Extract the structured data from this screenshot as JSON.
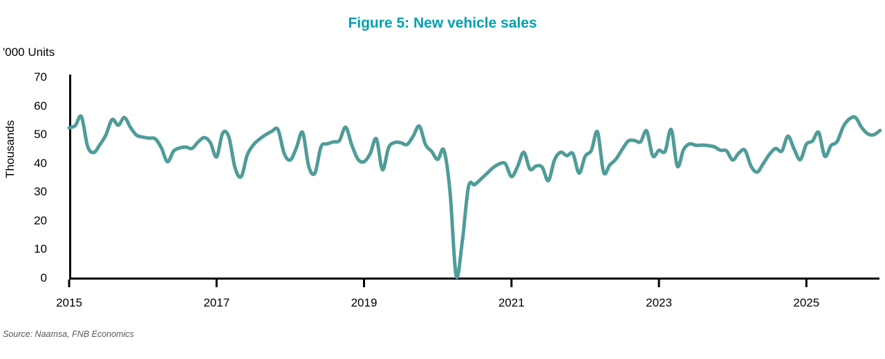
{
  "title": "Figure 5: New vehicle sales",
  "y_axis": {
    "top_label": "'000 Units",
    "side_label": "Thousands",
    "ticks": [
      70,
      60,
      50,
      40,
      30,
      20,
      10,
      0
    ]
  },
  "x_axis": {
    "tick_years": [
      2015,
      2017,
      2019,
      2021,
      2023,
      2025
    ]
  },
  "source": "Source: Naamsa, FNB Economics",
  "colors": {
    "title": "#00A0AF",
    "line": "#4F9C99",
    "axis": "#000000",
    "source_text": "#595959"
  },
  "chart_data": {
    "type": "line",
    "title": "Figure 5: New vehicle sales",
    "ylabel": "Thousands ('000 Units)",
    "xlabel": "",
    "ylim": [
      0,
      70
    ],
    "grid": false,
    "legend_position": "none",
    "frequency": "monthly",
    "start": "2015-01",
    "end": "2026-01",
    "x_tick_labels": [
      "2015",
      "2017",
      "2019",
      "2021",
      "2023",
      "2025"
    ],
    "series": [
      {
        "name": "New vehicle sales ('000 units)",
        "values": [
          52.4,
          53.2,
          56.3,
          46.0,
          43.8,
          46.5,
          50.0,
          55.3,
          53.3,
          56.0,
          52.5,
          49.8,
          49.2,
          48.8,
          48.6,
          45.5,
          40.6,
          44.3,
          45.4,
          45.7,
          45.2,
          47.5,
          49.0,
          47.2,
          42.3,
          50.6,
          49.2,
          38.5,
          35.4,
          43.0,
          46.5,
          48.5,
          50.0,
          51.2,
          51.8,
          43.5,
          41.2,
          45.5,
          50.8,
          39.0,
          36.6,
          45.8,
          46.8,
          47.5,
          48.0,
          52.6,
          46.5,
          41.5,
          40.6,
          43.4,
          48.6,
          37.8,
          45.5,
          47.3,
          47.2,
          46.6,
          49.5,
          53.0,
          46.6,
          44.2,
          41.4,
          44.6,
          30.0,
          0.8,
          13.0,
          31.9,
          32.6,
          34.5,
          36.5,
          38.5,
          39.8,
          39.9,
          35.4,
          39.0,
          43.9,
          38.0,
          39.1,
          38.7,
          34.0,
          41.2,
          43.9,
          42.7,
          43.4,
          36.6,
          42.5,
          44.5,
          51.0,
          36.9,
          39.5,
          41.5,
          44.8,
          47.8,
          48.0,
          47.5,
          51.3,
          42.6,
          44.6,
          44.2,
          51.8,
          39.0,
          44.8,
          46.8,
          46.3,
          46.4,
          46.2,
          45.8,
          44.6,
          44.4,
          41.2,
          43.6,
          44.6,
          39.0,
          37.0,
          40.0,
          43.2,
          45.2,
          44.3,
          49.5,
          45.0,
          41.3,
          46.7,
          47.8,
          50.8,
          42.5,
          46.2,
          47.6,
          52.8,
          55.5,
          56.0,
          52.5,
          50.3,
          50.0,
          51.5
        ]
      }
    ]
  }
}
